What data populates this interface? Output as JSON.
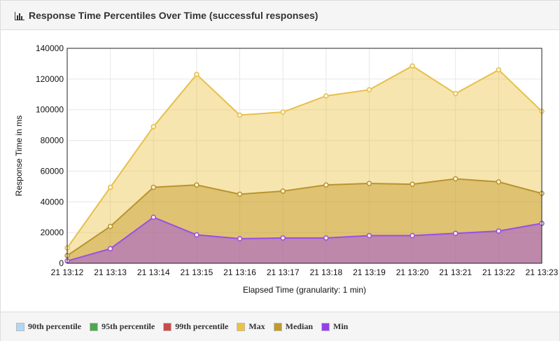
{
  "panel": {
    "title": "Response Time Percentiles Over Time (successful responses)",
    "icon": "bar-chart-icon"
  },
  "chart_data": {
    "type": "area",
    "title": "Response Time Percentiles Over Time (successful responses)",
    "xlabel": "Elapsed Time (granularity: 1 min)",
    "ylabel": "Response Time in ms",
    "categories": [
      "21 13:12",
      "21 13:13",
      "21 13:14",
      "21 13:15",
      "21 13:16",
      "21 13:17",
      "21 13:18",
      "21 13:19",
      "21 13:20",
      "21 13:21",
      "21 13:22",
      "21 13:23"
    ],
    "ylim": [
      0,
      140000
    ],
    "yticks": [
      "0",
      "20000",
      "40000",
      "60000",
      "80000",
      "100000",
      "120000",
      "140000"
    ],
    "grid": true,
    "legend_position": "bottom",
    "series": [
      {
        "name": "Max",
        "color": "#edc240",
        "values": [
          10000,
          49500,
          89000,
          123000,
          96500,
          98500,
          109000,
          113000,
          128500,
          110500,
          126000,
          99000
        ]
      },
      {
        "name": "Median",
        "color": "#c09a2b",
        "values": [
          5000,
          24000,
          49500,
          51000,
          45000,
          47000,
          51000,
          52000,
          51500,
          55000,
          53000,
          45500
        ]
      },
      {
        "name": "Min",
        "color": "#9440ed",
        "values": [
          1500,
          9500,
          30000,
          18500,
          16000,
          16500,
          16500,
          18000,
          18000,
          19500,
          21000,
          26000
        ]
      }
    ],
    "legend": [
      {
        "name": "90th percentile",
        "color": "#afd8f8"
      },
      {
        "name": "95th percentile",
        "color": "#4da74d"
      },
      {
        "name": "99th percentile",
        "color": "#cb4b4b"
      },
      {
        "name": "Max",
        "color": "#edc240"
      },
      {
        "name": "Median",
        "color": "#c09a2b"
      },
      {
        "name": "Min",
        "color": "#9440ed"
      }
    ]
  }
}
